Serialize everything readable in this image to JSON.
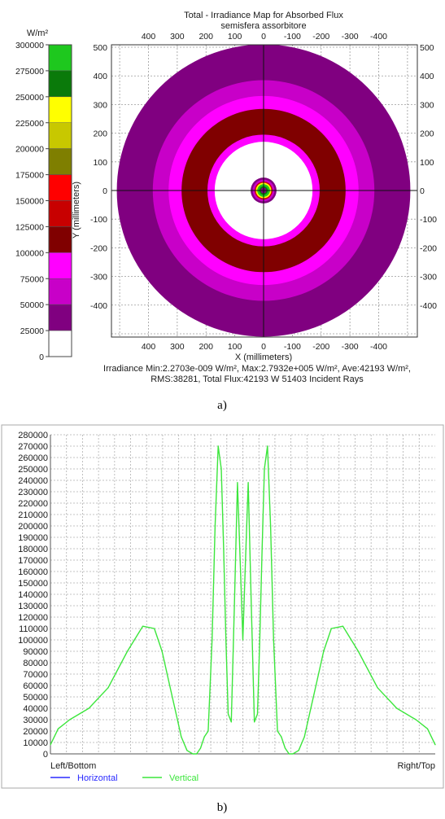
{
  "chart_data": [
    {
      "type": "heatmap",
      "title": "Total - Irradiance Map for Absorbed Flux",
      "subtitle": "semisfera assorbitore",
      "xlabel": "X (millimeters)",
      "ylabel": "Y (millimeters)",
      "x_ticks": [
        "400",
        "300",
        "200",
        "100",
        "0",
        "-100",
        "-200",
        "-300",
        "-400"
      ],
      "y_ticks": [
        "500",
        "400",
        "300",
        "200",
        "100",
        "0",
        "-100",
        "-200",
        "-300",
        "-400"
      ],
      "xlim": [
        500,
        -500
      ],
      "ylim": [
        -500,
        500
      ],
      "colorbar": {
        "unit": "W/m²",
        "ticks": [
          "300000",
          "275000",
          "250000",
          "225000",
          "200000",
          "175000",
          "150000",
          "125000",
          "100000",
          "75000",
          "50000",
          "25000",
          "0"
        ],
        "levels": [
          {
            "min": 275000,
            "max": 300000,
            "color": "#1ec81e"
          },
          {
            "min": 250000,
            "max": 275000,
            "color": "#0a7a0a"
          },
          {
            "min": 225000,
            "max": 250000,
            "color": "#ffff00"
          },
          {
            "min": 200000,
            "max": 225000,
            "color": "#c8c800"
          },
          {
            "min": 175000,
            "max": 200000,
            "color": "#7f7f00"
          },
          {
            "min": 150000,
            "max": 175000,
            "color": "#ff0000"
          },
          {
            "min": 125000,
            "max": 150000,
            "color": "#c80000"
          },
          {
            "min": 100000,
            "max": 125000,
            "color": "#800000"
          },
          {
            "min": 75000,
            "max": 100000,
            "color": "#ff00ff"
          },
          {
            "min": 50000,
            "max": 75000,
            "color": "#c800c8"
          },
          {
            "min": 25000,
            "max": 50000,
            "color": "#800080"
          },
          {
            "min": 0,
            "max": 25000,
            "color": "#ffffff"
          }
        ]
      },
      "rings": [
        {
          "r_outer": 510,
          "color": "#800080"
        },
        {
          "r_outer": 385,
          "color": "#c800c8"
        },
        {
          "r_outer": 330,
          "color": "#ff00ff"
        },
        {
          "r_outer": 285,
          "color": "#800000"
        },
        {
          "r_outer": 195,
          "color": "#ff00ff"
        },
        {
          "r_outer": 170,
          "color": "#ffffff"
        },
        {
          "r_outer": 45,
          "color": "#800080"
        },
        {
          "r_outer": 38,
          "color": "#c800c8"
        },
        {
          "r_outer": 31,
          "color": "#c80000"
        },
        {
          "r_outer": 27,
          "color": "#ffff00"
        },
        {
          "r_outer": 22,
          "color": "#1ec81e"
        },
        {
          "r_outer": 15,
          "color": "#0a7a0a"
        },
        {
          "r_outer": 10,
          "color": "#800080"
        }
      ],
      "stats": [
        "Irradiance Min:2.2703e-009 W/m², Max:2.7932e+005 W/m², Ave:42193 W/m²,",
        "RMS:38281, Total Flux:42193 W 51403 Incident Rays"
      ],
      "caption": "a)"
    },
    {
      "type": "line",
      "x_ticks": [
        "Left/Bottom",
        "Right/Top"
      ],
      "ylim": [
        0,
        280000
      ],
      "y_ticks": [
        "280000",
        "270000",
        "260000",
        "250000",
        "240000",
        "230000",
        "220000",
        "210000",
        "200000",
        "190000",
        "180000",
        "170000",
        "160000",
        "150000",
        "140000",
        "130000",
        "120000",
        "110000",
        "100000",
        "90000",
        "80000",
        "70000",
        "60000",
        "50000",
        "40000",
        "30000",
        "20000",
        "10000",
        "0"
      ],
      "legend": [
        {
          "name": "Horizontal",
          "color": "#2a2aff"
        },
        {
          "name": "Vertical",
          "color": "#3ce63c"
        }
      ],
      "series": [
        {
          "name": "Vertical",
          "color": "#3ce63c",
          "x": [
            0,
            0.02,
            0.05,
            0.1,
            0.15,
            0.2,
            0.24,
            0.27,
            0.29,
            0.31,
            0.33,
            0.34,
            0.355,
            0.37,
            0.38,
            0.39,
            0.4,
            0.41,
            0.42,
            0.428,
            0.436,
            0.444,
            0.45,
            0.456,
            0.462,
            0.47,
            0.478,
            0.486,
            0.494,
            0.5,
            0.506,
            0.514,
            0.522,
            0.53,
            0.538,
            0.544,
            0.55,
            0.556,
            0.564,
            0.572,
            0.58,
            0.59,
            0.6,
            0.61,
            0.62,
            0.63,
            0.645,
            0.66,
            0.67,
            0.69,
            0.71,
            0.73,
            0.76,
            0.8,
            0.85,
            0.9,
            0.95,
            0.98,
            1.0
          ],
          "values": [
            8000,
            22000,
            30000,
            40000,
            58000,
            90000,
            112000,
            110000,
            90000,
            60000,
            30000,
            15000,
            3000,
            0,
            0,
            5000,
            15000,
            20000,
            100000,
            200000,
            270000,
            250000,
            180000,
            100000,
            35000,
            28000,
            130000,
            238000,
            160000,
            100000,
            160000,
            238000,
            130000,
            28000,
            35000,
            100000,
            180000,
            250000,
            270000,
            200000,
            100000,
            20000,
            15000,
            5000,
            0,
            0,
            3000,
            15000,
            30000,
            60000,
            90000,
            110000,
            112000,
            90000,
            58000,
            40000,
            30000,
            22000,
            8000
          ]
        }
      ],
      "caption": "b)"
    }
  ]
}
